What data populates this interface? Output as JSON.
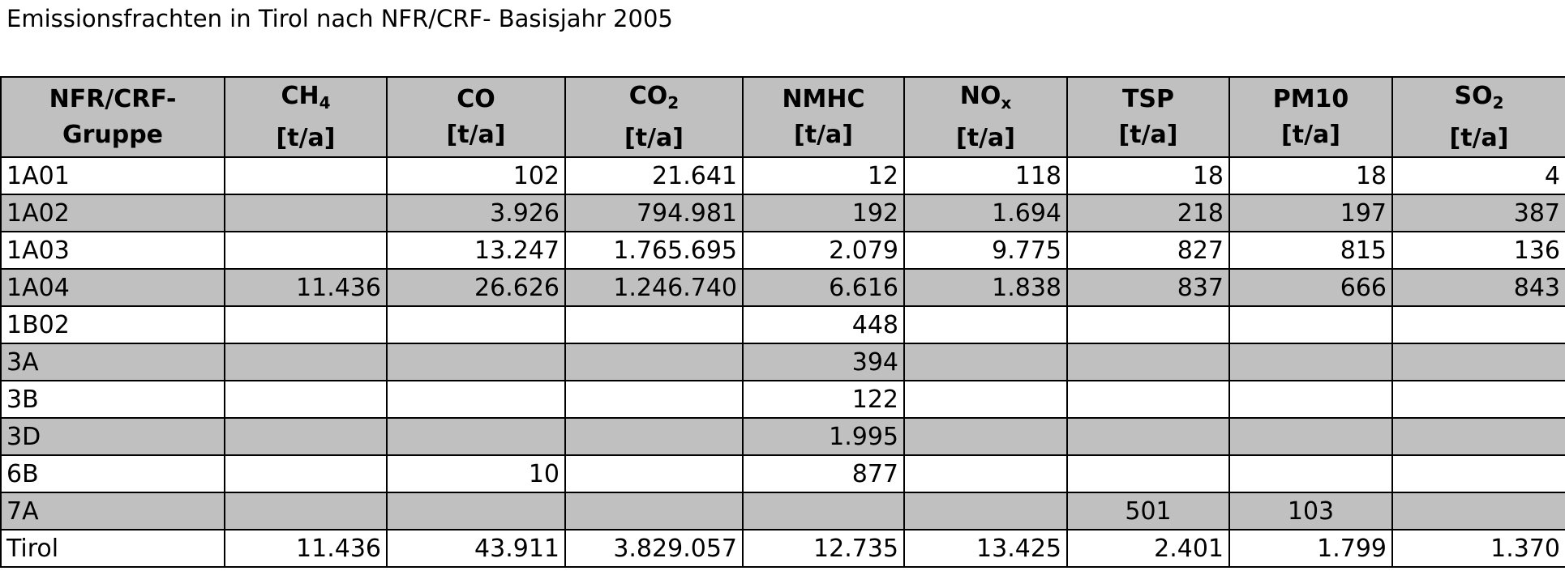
{
  "title": "Emissionsfrachten in Tirol nach NFR/CRF- Basisjahr 2005",
  "table": {
    "header": [
      {
        "line1": "NFR/CRF-",
        "line2": "Gruppe"
      },
      {
        "line1": "CH",
        "sub": "4",
        "line2": "[t/a]"
      },
      {
        "line1": "CO",
        "line2": "[t/a]"
      },
      {
        "line1": "CO",
        "sub": "2",
        "line2": "[t/a]"
      },
      {
        "line1": "NMHC",
        "line2": "[t/a]"
      },
      {
        "line1": "NO",
        "sub": "x",
        "line2": "[t/a]"
      },
      {
        "line1": "TSP",
        "line2": "[t/a]"
      },
      {
        "line1": "PM10",
        "line2": "[t/a]"
      },
      {
        "line1": "SO",
        "sub": "2",
        "line2": "[t/a]"
      }
    ],
    "rows": [
      [
        "1A01",
        null,
        "102",
        "21.641",
        "12",
        "118",
        "18",
        "18",
        "4"
      ],
      [
        "1A02",
        null,
        "3.926",
        "794.981",
        "192",
        "1.694",
        "218",
        "197",
        "387"
      ],
      [
        "1A03",
        null,
        "13.247",
        "1.765.695",
        "2.079",
        "9.775",
        "827",
        "815",
        "136"
      ],
      [
        "1A04",
        "11.436",
        "26.626",
        "1.246.740",
        "6.616",
        "1.838",
        "837",
        "666",
        "843"
      ],
      [
        "1B02",
        null,
        null,
        null,
        "448",
        null,
        null,
        null,
        null
      ],
      [
        "3A",
        null,
        null,
        null,
        "394",
        null,
        null,
        null,
        null
      ],
      [
        "3B",
        null,
        null,
        null,
        "122",
        null,
        null,
        null,
        null
      ],
      [
        "3D",
        null,
        null,
        null,
        "1.995",
        null,
        null,
        null,
        null
      ],
      [
        "6B",
        null,
        "10",
        null,
        "877",
        null,
        null,
        null,
        null
      ],
      [
        "7A",
        null,
        null,
        null,
        null,
        null,
        "501",
        "103",
        null
      ],
      [
        "Tirol",
        "11.436",
        "43.911",
        "3.829.057",
        "12.735",
        "13.425",
        "2.401",
        "1.799",
        "1.370"
      ]
    ]
  }
}
